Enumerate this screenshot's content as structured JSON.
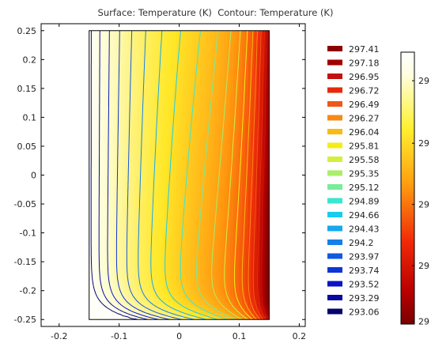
{
  "title": "Surface: Temperature (K)  Contour: Temperature (K)",
  "chart_data": {
    "type": "heatmap",
    "title": "Surface: Temperature (K)  Contour: Temperature (K)",
    "surface_quantity": "Temperature (K)",
    "contour_quantity": "Temperature (K)",
    "xlim": [
      -0.23,
      0.21
    ],
    "ylim": [
      -0.262,
      0.262
    ],
    "x_ticks": [
      -0.2,
      -0.1,
      0,
      0.1,
      0.2
    ],
    "y_ticks": [
      -0.25,
      -0.2,
      -0.15,
      -0.1,
      -0.05,
      0,
      0.05,
      0.1,
      0.15,
      0.2,
      0.25
    ],
    "x_tick_labels": [
      "-0.2",
      "-0.1",
      "0",
      "0.1",
      "0.2"
    ],
    "y_tick_labels": [
      "-0.25",
      "-0.2",
      "-0.15",
      "-0.1",
      "-0.05",
      "0",
      "0.05",
      "0.1",
      "0.15",
      "0.2",
      "0.25"
    ],
    "domain": {
      "x": [
        -0.15,
        0.15
      ],
      "y": [
        -0.25,
        0.25
      ]
    },
    "temperature_range": [
      293.0,
      297.5
    ],
    "contour_levels": [
      {
        "value": 297.41,
        "label": "297.41",
        "color": "#8b0000"
      },
      {
        "value": 297.18,
        "label": "297.18",
        "color": "#a10000"
      },
      {
        "value": 296.95,
        "label": "296.95",
        "color": "#c41010"
      },
      {
        "value": 296.72,
        "label": "296.72",
        "color": "#e52a0a"
      },
      {
        "value": 296.49,
        "label": "296.49",
        "color": "#f0561a"
      },
      {
        "value": 296.27,
        "label": "296.27",
        "color": "#f68a18"
      },
      {
        "value": 296.04,
        "label": "296.04",
        "color": "#f8bc10"
      },
      {
        "value": 295.81,
        "label": "295.81",
        "color": "#f6ec18"
      },
      {
        "value": 295.58,
        "label": "295.58",
        "color": "#d2f040"
      },
      {
        "value": 295.35,
        "label": "295.35",
        "color": "#aaee6a"
      },
      {
        "value": 295.12,
        "label": "295.12",
        "color": "#78ec9a"
      },
      {
        "value": 294.89,
        "label": "294.89",
        "color": "#3ce6d0"
      },
      {
        "value": 294.66,
        "label": "294.66",
        "color": "#18ccee"
      },
      {
        "value": 294.43,
        "label": "294.43",
        "color": "#16a8ec"
      },
      {
        "value": 294.2,
        "label": "294.2",
        "color": "#1480e8"
      },
      {
        "value": 293.97,
        "label": "293.97",
        "color": "#1258e0"
      },
      {
        "value": 293.74,
        "label": "293.74",
        "color": "#0e34d4"
      },
      {
        "value": 293.52,
        "label": "293.52",
        "color": "#0a14c4"
      },
      {
        "value": 293.29,
        "label": "293.29",
        "color": "#080aa0"
      },
      {
        "value": 293.06,
        "label": "293.06",
        "color": "#04046e"
      }
    ],
    "surface_colorbar": {
      "colormap": "ThermalLight",
      "tick_labels": [
        "29",
        "29",
        "29",
        "29",
        "29"
      ]
    },
    "grid": false
  }
}
